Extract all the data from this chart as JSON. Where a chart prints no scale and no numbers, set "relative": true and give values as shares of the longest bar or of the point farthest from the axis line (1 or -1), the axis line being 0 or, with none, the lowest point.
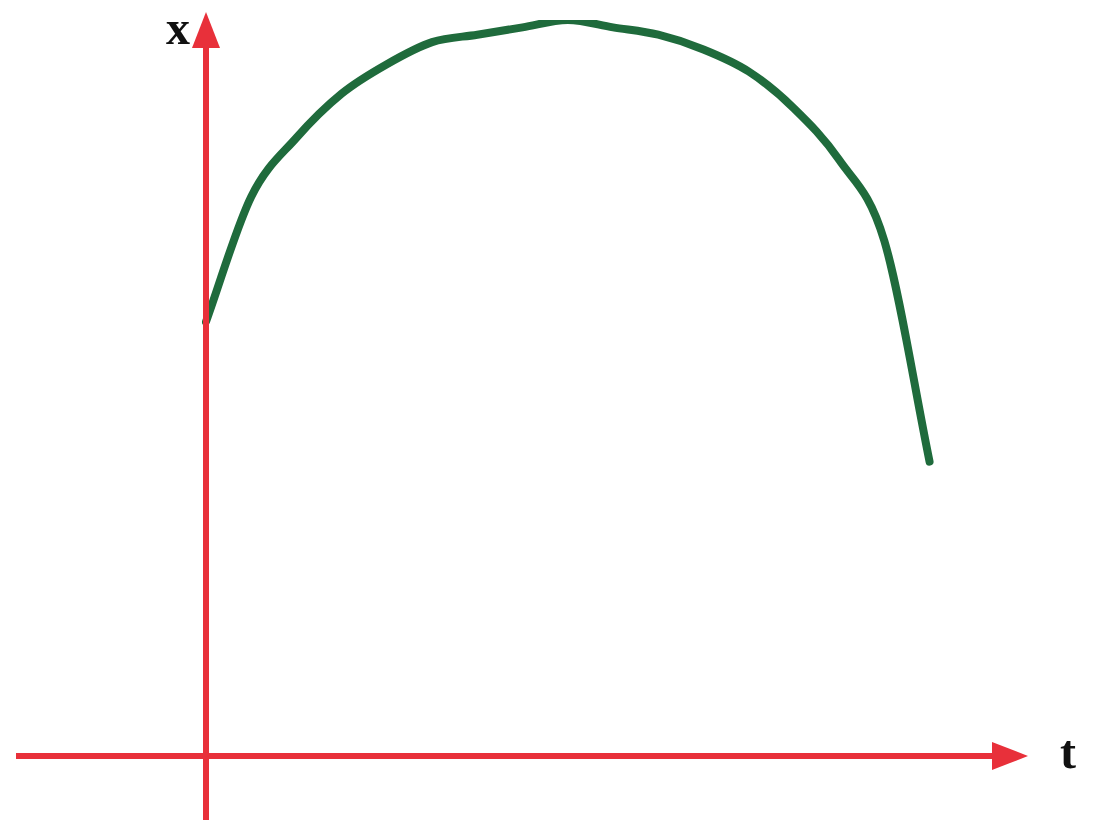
{
  "chart_data": {
    "type": "line",
    "xlabel": "t",
    "ylabel": "x",
    "relative": true,
    "marker": "none",
    "color": "#1f6b3c",
    "categories": [
      null,
      null,
      null,
      null,
      null,
      null,
      null,
      null,
      null,
      null,
      null,
      null,
      null,
      null,
      null,
      null,
      null,
      null,
      null
    ],
    "values": [
      0.59,
      0.76,
      0.84,
      0.9,
      0.94,
      0.97,
      0.98,
      0.99,
      1,
      0.99,
      0.98,
      0.96,
      0.93,
      0.88,
      0.81,
      0.7,
      0.4,
      null,
      null
    ]
  }
}
